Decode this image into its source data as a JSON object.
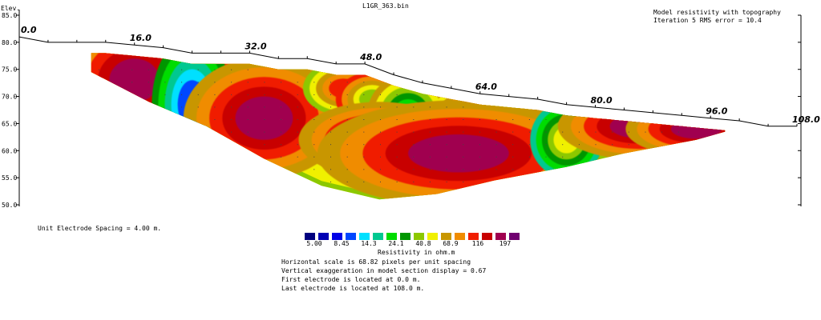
{
  "chart_data": {
    "type": "heatmap",
    "file_title": "L1GR_363.bin",
    "title_lines": [
      "Model resistivity with topography",
      "Iteration 5 RMS error = 10.4"
    ],
    "ylabel": "Elev.",
    "y_ticks": [
      "85.0",
      "80.0",
      "75.0",
      "70.0",
      "65.0",
      "60.0",
      "55.0",
      "50.0"
    ],
    "ylim": [
      50,
      85
    ],
    "xlim": [
      0,
      108
    ],
    "x_labels": [
      {
        "x": 0,
        "label": "0.0"
      },
      {
        "x": 16,
        "label": "16.0"
      },
      {
        "x": 32,
        "label": "32.0"
      },
      {
        "x": 48,
        "label": "48.0"
      },
      {
        "x": 64,
        "label": "64.0"
      },
      {
        "x": 80,
        "label": "80.0"
      },
      {
        "x": 96,
        "label": "96.0"
      },
      {
        "x": 108,
        "label": "108.0"
      }
    ],
    "topography": [
      {
        "x": 0,
        "elev": 81.0
      },
      {
        "x": 4,
        "elev": 80.0
      },
      {
        "x": 8,
        "elev": 80.0
      },
      {
        "x": 12,
        "elev": 80.0
      },
      {
        "x": 16,
        "elev": 79.5
      },
      {
        "x": 20,
        "elev": 79.0
      },
      {
        "x": 24,
        "elev": 78.0
      },
      {
        "x": 28,
        "elev": 78.0
      },
      {
        "x": 32,
        "elev": 78.0
      },
      {
        "x": 36,
        "elev": 77.0
      },
      {
        "x": 40,
        "elev": 77.0
      },
      {
        "x": 44,
        "elev": 76.0
      },
      {
        "x": 48,
        "elev": 76.0
      },
      {
        "x": 52,
        "elev": 74.0
      },
      {
        "x": 56,
        "elev": 72.5
      },
      {
        "x": 60,
        "elev": 71.5
      },
      {
        "x": 64,
        "elev": 70.5
      },
      {
        "x": 68,
        "elev": 70.0
      },
      {
        "x": 72,
        "elev": 69.5
      },
      {
        "x": 76,
        "elev": 68.5
      },
      {
        "x": 80,
        "elev": 68.0
      },
      {
        "x": 84,
        "elev": 67.5
      },
      {
        "x": 88,
        "elev": 67.0
      },
      {
        "x": 92,
        "elev": 66.5
      },
      {
        "x": 96,
        "elev": 66.0
      },
      {
        "x": 100,
        "elev": 65.5
      },
      {
        "x": 104,
        "elev": 64.5
      },
      {
        "x": 108,
        "elev": 64.5
      }
    ],
    "section_bottom": [
      {
        "x": 10,
        "elev": 74.5
      },
      {
        "x": 18,
        "elev": 69.0
      },
      {
        "x": 26,
        "elev": 64.5
      },
      {
        "x": 34,
        "elev": 58.5
      },
      {
        "x": 42,
        "elev": 53.5
      },
      {
        "x": 50,
        "elev": 51.0
      },
      {
        "x": 58,
        "elev": 52.0
      },
      {
        "x": 66,
        "elev": 54.5
      },
      {
        "x": 76,
        "elev": 57.0
      },
      {
        "x": 84,
        "elev": 59.5
      },
      {
        "x": 94,
        "elev": 62.0
      },
      {
        "x": 98,
        "elev": 63.5
      }
    ],
    "section_top_offset": 2.0,
    "resistivity_blobs": [
      {
        "x": 16,
        "elev": 73.0,
        "rx": 3.5,
        "ry": 4.0,
        "level": 14
      },
      {
        "x": 24,
        "elev": 68.5,
        "rx": 2.0,
        "ry": 4.5,
        "level": 3
      },
      {
        "x": 36,
        "elev": 71.5,
        "rx": 3.0,
        "ry": 2.5,
        "level": 6
      },
      {
        "x": 34,
        "elev": 66.0,
        "rx": 4.0,
        "ry": 4.0,
        "level": 14
      },
      {
        "x": 45,
        "elev": 71.5,
        "rx": 2.0,
        "ry": 1.8,
        "level": 12
      },
      {
        "x": 49,
        "elev": 69.5,
        "rx": 1.8,
        "ry": 1.8,
        "level": 8
      },
      {
        "x": 54,
        "elev": 67.0,
        "rx": 2.0,
        "ry": 2.5,
        "level": 6
      },
      {
        "x": 63,
        "elev": 67.0,
        "rx": 2.0,
        "ry": 1.8,
        "level": 13
      },
      {
        "x": 67,
        "elev": 64.5,
        "rx": 2.2,
        "ry": 2.2,
        "level": 6
      },
      {
        "x": 50,
        "elev": 62.0,
        "rx": 4.0,
        "ry": 2.5,
        "level": 14
      },
      {
        "x": 61,
        "elev": 59.5,
        "rx": 7.0,
        "ry": 3.5,
        "level": 14
      },
      {
        "x": 76,
        "elev": 62.0,
        "rx": 1.8,
        "ry": 2.5,
        "level": 9
      },
      {
        "x": 86,
        "elev": 64.5,
        "rx": 4.0,
        "ry": 2.2,
        "level": 14
      },
      {
        "x": 94,
        "elev": 64.0,
        "rx": 3.5,
        "ry": 1.8,
        "level": 14
      }
    ],
    "legend": {
      "colors": [
        "#00007f",
        "#0000b4",
        "#0000e6",
        "#0046ff",
        "#00e0ff",
        "#00c890",
        "#00dc00",
        "#009600",
        "#8cc800",
        "#f0f000",
        "#c89600",
        "#f08c00",
        "#f01e00",
        "#c80000",
        "#a00050",
        "#700070"
      ],
      "tick_labels": [
        "5.00",
        "8.45",
        "14.3",
        "24.1",
        "40.8",
        "68.9",
        "116",
        "197"
      ],
      "title": "Resistivity in ohm.m"
    }
  },
  "notes": {
    "unit_spacing": "Unit Electrode Spacing = 4.00 m.",
    "lines": [
      "Horizontal scale is 68.82 pixels per unit spacing",
      "Vertical exaggeration in model section display = 0.67",
      "First electrode is located at  0.0  m.",
      "Last electrode is located at 108.0 m."
    ]
  }
}
